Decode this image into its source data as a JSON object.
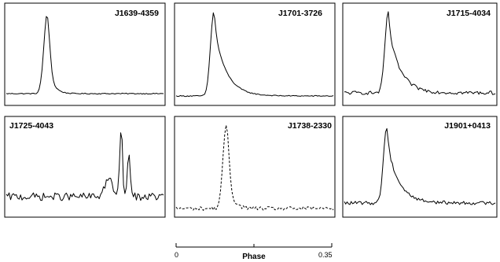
{
  "chart_data": [
    {
      "type": "line",
      "title": "J1639-4359",
      "style": "solid",
      "shape": "single-peak",
      "peak_phase": 0.26,
      "noise": "low",
      "xlim": [
        0,
        1
      ]
    },
    {
      "type": "line",
      "title": "J1701-3726",
      "style": "solid",
      "shape": "single-peak-exponential-tail",
      "peak_phase": 0.24,
      "noise": "low",
      "xlim": [
        0,
        1
      ]
    },
    {
      "type": "line",
      "title": "J1715-4034",
      "style": "solid",
      "shape": "single-peak-exponential-tail",
      "peak_phase": 0.29,
      "noise": "medium",
      "xlim": [
        0,
        1
      ]
    },
    {
      "type": "line",
      "title": "J1725-4043",
      "style": "solid",
      "shape": "double-peak",
      "peak_phase": 0.73,
      "noise": "high",
      "xlim": [
        0,
        1
      ]
    },
    {
      "type": "line",
      "title": "J1738-2330",
      "style": "dashed",
      "shape": "single-peak",
      "peak_phase": 0.32,
      "noise": "medium",
      "xlim": [
        0,
        1
      ]
    },
    {
      "type": "line",
      "title": "J1901+0413",
      "style": "solid",
      "shape": "single-peak-exponential-tail",
      "peak_phase": 0.28,
      "noise": "medium",
      "xlim": [
        0,
        1
      ]
    }
  ],
  "phase_axis": {
    "label": "Phase",
    "ticks": [
      "0",
      "0.35"
    ],
    "range": [
      0,
      0.35
    ]
  }
}
